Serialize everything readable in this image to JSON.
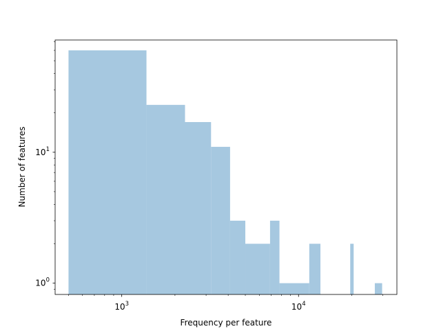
{
  "chart_data": {
    "type": "bar",
    "title": "",
    "xlabel": "Frequency per feature",
    "ylabel": "Number of features",
    "xscale": "log",
    "yscale": "log",
    "xlim": [
      420,
      36000
    ],
    "ylim": [
      0.82,
      72
    ],
    "grid": false,
    "bar_color": "#a6c8e0",
    "x_ticks": [
      {
        "value": 1000,
        "base": "10",
        "exp": "3"
      },
      {
        "value": 10000,
        "base": "10",
        "exp": "4"
      }
    ],
    "y_ticks": [
      {
        "value": 1,
        "base": "10",
        "exp": "0"
      },
      {
        "value": 10,
        "base": "10",
        "exp": "1"
      }
    ],
    "bins": [
      {
        "x0": 500,
        "x1": 1380,
        "count": 60
      },
      {
        "x0": 1380,
        "x1": 2280,
        "count": 23
      },
      {
        "x0": 2280,
        "x1": 3200,
        "count": 17
      },
      {
        "x0": 3200,
        "x1": 4100,
        "count": 11
      },
      {
        "x0": 4100,
        "x1": 5000,
        "count": 3
      },
      {
        "x0": 5000,
        "x1": 6900,
        "count": 2
      },
      {
        "x0": 6900,
        "x1": 7800,
        "count": 3
      },
      {
        "x0": 7800,
        "x1": 11500,
        "count": 1
      },
      {
        "x0": 11500,
        "x1": 13300,
        "count": 2
      },
      {
        "x0": 19600,
        "x1": 20500,
        "count": 2
      },
      {
        "x0": 27000,
        "x1": 29700,
        "count": 1
      }
    ]
  }
}
